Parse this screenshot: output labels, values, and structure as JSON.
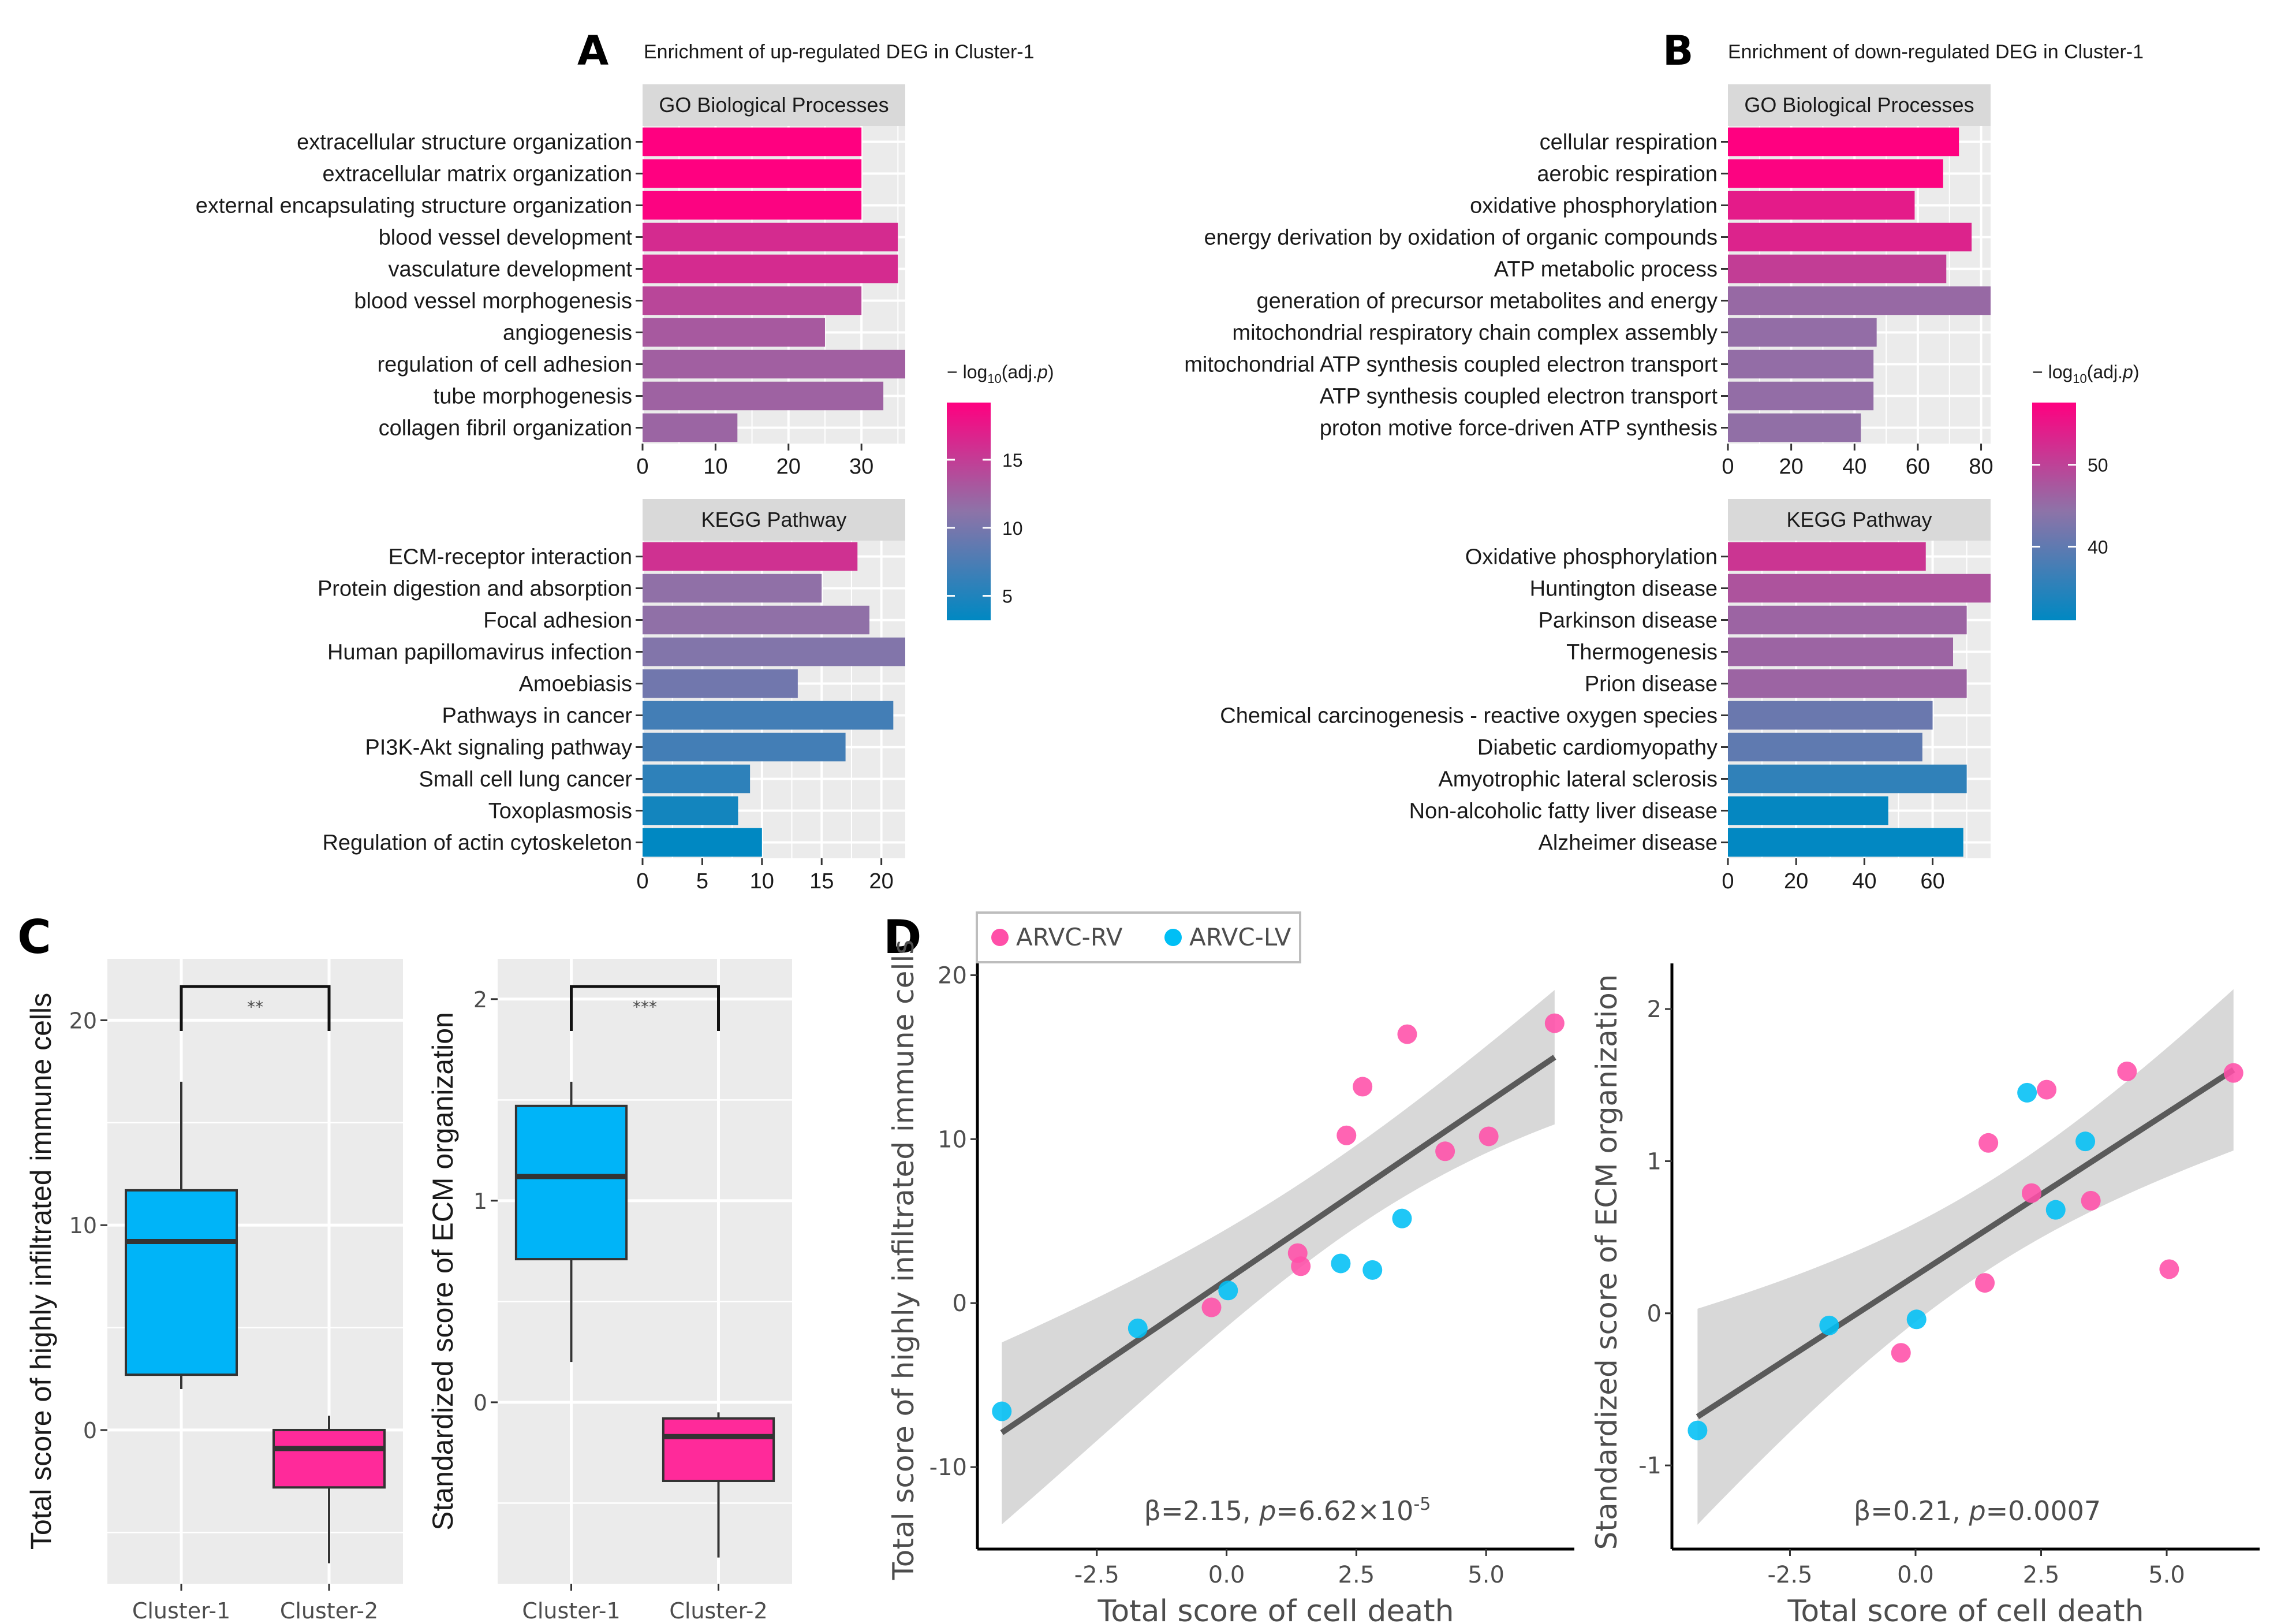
{
  "figure": {
    "panel_letters": [
      "A",
      "B",
      "C",
      "D"
    ]
  },
  "chart_data": [
    {
      "id": "A",
      "type": "bar",
      "orientation": "horizontal",
      "title": "Enrichment of up-regulated DEG in Cluster-1",
      "colorbar": {
        "title": "− log10(adj.p)",
        "title_parts": [
          "− log",
          "10",
          "(adj.",
          "p",
          ")"
        ],
        "range": [
          3.2,
          19.2
        ],
        "ticks": [
          5,
          10,
          15
        ]
      },
      "facets": [
        {
          "strip": "GO Biological Processes",
          "xlim": [
            0,
            36
          ],
          "xticks": [
            0,
            10,
            20,
            30
          ],
          "categories": [
            "extracellular structure organization",
            "extracellular matrix organization",
            "external encapsulating structure organization",
            "blood vessel development",
            "vasculature development",
            "blood vessel morphogenesis",
            "angiogenesis",
            "regulation of cell adhesion",
            "tube morphogenesis",
            "collagen fibril organization"
          ],
          "values": [
            30,
            30,
            30,
            35,
            35,
            30,
            25,
            36,
            33,
            13
          ],
          "color_values": [
            19.2,
            19.2,
            19.0,
            16.2,
            16.2,
            14.3,
            13.0,
            12.6,
            12.4,
            12.2
          ]
        },
        {
          "strip": "KEGG Pathway",
          "xlim": [
            0,
            22
          ],
          "xticks": [
            0,
            5,
            10,
            15,
            20
          ],
          "categories": [
            "ECM-receptor interaction",
            "Protein digestion and absorption",
            "Focal adhesion",
            "Human papillomavirus infection",
            "Amoebiasis",
            "Pathways in cancer",
            "PI3K-Akt signaling pathway",
            "Small cell lung cancer",
            "Toxoplasmosis",
            "Regulation of actin cytoskeleton"
          ],
          "values": [
            18,
            15,
            19,
            22,
            13,
            21,
            17,
            9,
            8,
            10
          ],
          "color_values": [
            15.8,
            11.4,
            11.4,
            10.6,
            9.6,
            7.0,
            7.0,
            5.8,
            4.3,
            3.2
          ]
        }
      ]
    },
    {
      "id": "B",
      "type": "bar",
      "orientation": "horizontal",
      "title": "Enrichment of down-regulated DEG in Cluster-1",
      "colorbar": {
        "title": "− log10(adj.p)",
        "title_parts": [
          "− log",
          "10",
          "(adj.",
          "p",
          ")"
        ],
        "range": [
          31,
          57.6
        ],
        "ticks": [
          40,
          50
        ]
      },
      "facets": [
        {
          "strip": "GO Biological Processes",
          "xlim": [
            0,
            83
          ],
          "xticks": [
            0,
            20,
            40,
            60,
            80
          ],
          "categories": [
            "cellular respiration",
            "aerobic respiration",
            "oxidative phosphorylation",
            "energy derivation by oxidation of organic compounds",
            "ATP metabolic process",
            "generation of precursor metabolites and energy",
            "mitochondrial respiratory chain complex assembly",
            "mitochondrial ATP synthesis coupled electron transport",
            "ATP synthesis coupled electron transport",
            "proton motive force-driven ATP synthesis"
          ],
          "values": [
            73,
            68,
            59,
            77,
            69,
            83,
            47,
            46,
            46,
            42
          ],
          "color_values": [
            57.6,
            57.2,
            54.5,
            53.5,
            50.5,
            45.5,
            45.0,
            45.0,
            45.0,
            44.8
          ]
        },
        {
          "strip": "KEGG Pathway",
          "xlim": [
            0,
            77
          ],
          "xticks": [
            0,
            20,
            40,
            60
          ],
          "categories": [
            "Oxidative phosphorylation",
            "Huntington disease",
            "Parkinson disease",
            "Thermogenesis",
            "Prion disease",
            "Chemical carcinogenesis - reactive oxygen species",
            "Diabetic cardiomyopathy",
            "Amyotrophic lateral sclerosis",
            "Non-alcoholic fatty liver disease",
            "Alzheimer disease"
          ],
          "values": [
            58,
            77,
            70,
            66,
            70,
            60,
            57,
            70,
            47,
            69
          ],
          "color_values": [
            51.5,
            48.0,
            46.0,
            46.0,
            46.0,
            41.0,
            40.0,
            35.5,
            31.5,
            31.2
          ]
        }
      ]
    },
    {
      "id": "C1",
      "type": "box",
      "ylabel": "Total score of highly infiltrated immune cells",
      "ylim": [
        -7.5,
        23
      ],
      "yticks": [
        0,
        10,
        20
      ],
      "grid": true,
      "significance": "**",
      "categories": [
        "Cluster-1",
        "Cluster-2"
      ],
      "boxes": [
        {
          "name": "Cluster-1",
          "min": 2.0,
          "q1": 2.7,
          "median": 9.2,
          "q3": 11.7,
          "max": 17.0,
          "color": "#00b4f8"
        },
        {
          "name": "Cluster-2",
          "min": -6.5,
          "q1": -2.8,
          "median": -0.9,
          "q3": 0.0,
          "max": 0.7,
          "color": "#ff2a9a"
        }
      ]
    },
    {
      "id": "C2",
      "type": "box",
      "ylabel": "Standardized score of ECM organization",
      "ylim": [
        -0.9,
        2.2
      ],
      "yticks": [
        0,
        1,
        2
      ],
      "grid": true,
      "significance": "***",
      "categories": [
        "Cluster-1",
        "Cluster-2"
      ],
      "boxes": [
        {
          "name": "Cluster-1",
          "min": 0.2,
          "q1": 0.71,
          "median": 1.12,
          "q3": 1.47,
          "max": 1.59,
          "color": "#00b4f8"
        },
        {
          "name": "Cluster-2",
          "min": -0.77,
          "q1": -0.39,
          "median": -0.17,
          "q3": -0.08,
          "max": -0.05,
          "color": "#ff2a9a"
        }
      ]
    },
    {
      "id": "D1",
      "type": "scatter",
      "xlabel": "Total score of cell death",
      "ylabel": "Total score of highly infiltrated immune cells",
      "xlim": [
        -4.8,
        6.7
      ],
      "ylim": [
        -15,
        21
      ],
      "xticks": [
        -2.5,
        0.0,
        2.5,
        5.0
      ],
      "xtick_labels": [
        "-2.5",
        "0.0",
        "2.5",
        "5.0"
      ],
      "yticks": [
        -10,
        0,
        10,
        20
      ],
      "annotation": {
        "beta": "β=2.15, ",
        "p_label": "p",
        "p_value": "=6.62×10",
        "p_exp": "-5"
      },
      "fit": {
        "x": [
          -4.33,
          6.32
        ],
        "y": [
          -7.9,
          15.0
        ],
        "ci_lower": [
          -13.5,
          10.9
        ],
        "ci_upper": [
          -2.4,
          19.1
        ],
        "ci_mid_x": [
          0.0,
          2.2
        ],
        "ci_mid_lower": [
          -1.6,
          6.0
        ],
        "ci_mid_upper": [
          3.8,
          8.2
        ]
      },
      "legend": {
        "position": "top-left",
        "entries": [
          {
            "label": "ARVC-RV",
            "color": "#ff4fa8"
          },
          {
            "label": "ARVC-LV",
            "color": "#00bff5"
          }
        ]
      },
      "series": [
        {
          "name": "ARVC-RV",
          "color": "#ff4fa8",
          "points": [
            [
              -0.29,
              -0.26
            ],
            [
              1.37,
              3.05
            ],
            [
              1.43,
              2.25
            ],
            [
              2.31,
              10.23
            ],
            [
              2.62,
              13.2
            ],
            [
              3.48,
              16.4
            ],
            [
              4.21,
              9.26
            ],
            [
              5.05,
              10.17
            ],
            [
              6.32,
              17.07
            ]
          ]
        },
        {
          "name": "ARVC-LV",
          "color": "#00bff5",
          "points": [
            [
              -4.33,
              -6.6
            ],
            [
              -1.71,
              -1.54
            ],
            [
              0.03,
              0.77
            ],
            [
              2.2,
              2.42
            ],
            [
              2.81,
              2.02
            ],
            [
              3.38,
              5.16
            ]
          ]
        }
      ]
    },
    {
      "id": "D2",
      "type": "scatter",
      "xlabel": "Total score of cell death",
      "ylabel": "Standardized score of ECM organization",
      "xlim": [
        -4.85,
        6.85
      ],
      "ylim": [
        -1.55,
        2.3
      ],
      "xticks": [
        -2.5,
        0.0,
        2.5,
        5.0
      ],
      "xtick_labels": [
        "-2.5",
        "0.0",
        "2.5",
        "5.0"
      ],
      "yticks": [
        -1,
        0,
        1,
        2
      ],
      "annotation": {
        "beta": "β=0.21, ",
        "p_label": "p",
        "p_value": "=0.0007",
        "p_exp": ""
      },
      "fit": {
        "x": [
          -4.34,
          6.33
        ],
        "y": [
          -0.68,
          1.6
        ],
        "ci_lower": [
          -1.39,
          1.07
        ],
        "ci_upper": [
          0.03,
          2.13
        ],
        "ci_mid_x": [
          0.0,
          2.2
        ],
        "ci_mid_lower": [
          0.1,
          0.55
        ],
        "ci_mid_upper": [
          0.48,
          0.9
        ]
      },
      "series": [
        {
          "name": "ARVC-RV",
          "color": "#ff4fa8",
          "points": [
            [
              -0.29,
              -0.26
            ],
            [
              1.38,
              0.2
            ],
            [
              1.45,
              1.12
            ],
            [
              2.31,
              0.79
            ],
            [
              2.61,
              1.47
            ],
            [
              3.49,
              0.74
            ],
            [
              4.21,
              1.59
            ],
            [
              5.05,
              0.29
            ],
            [
              6.33,
              1.58
            ]
          ]
        },
        {
          "name": "ARVC-LV",
          "color": "#00bff5",
          "points": [
            [
              -4.34,
              -0.77
            ],
            [
              -1.72,
              -0.08
            ],
            [
              0.02,
              -0.04
            ],
            [
              2.22,
              1.45
            ],
            [
              2.79,
              0.68
            ],
            [
              3.38,
              1.13
            ]
          ]
        }
      ]
    }
  ]
}
